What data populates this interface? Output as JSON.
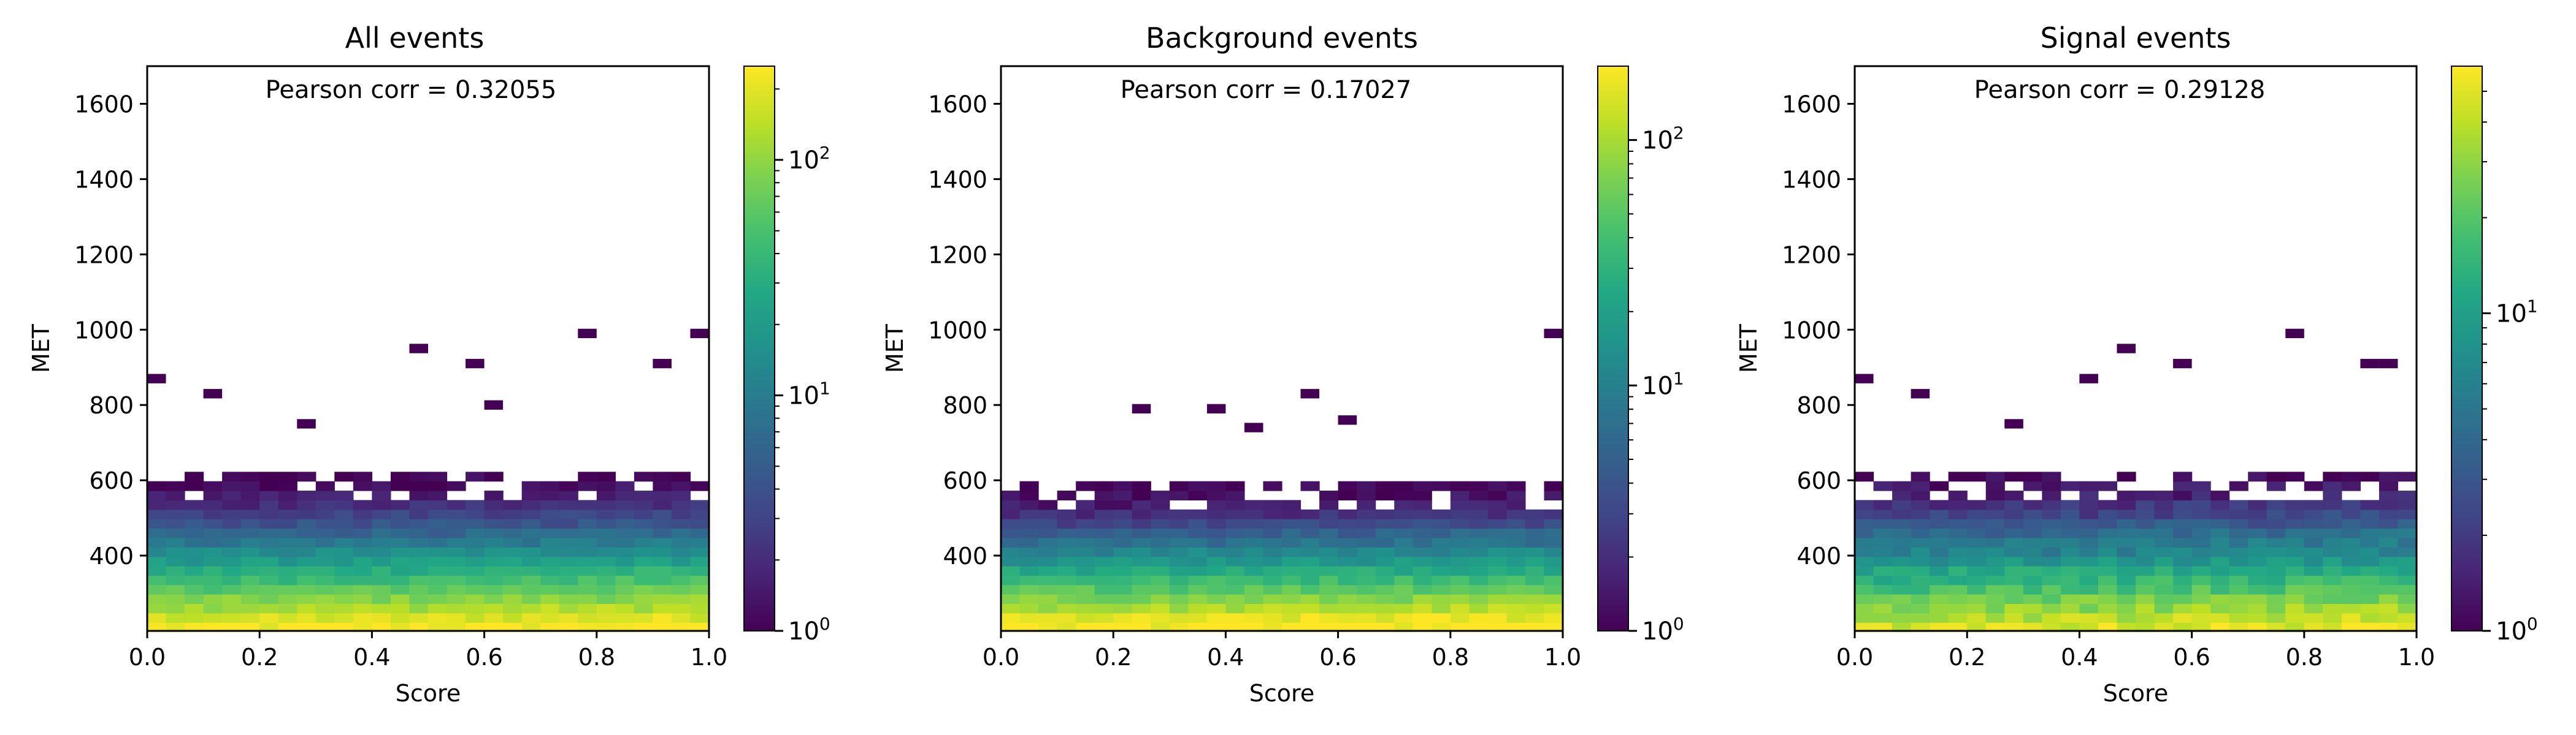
{
  "chart_data": [
    {
      "type": "heatmap",
      "title": "All events",
      "xlabel": "Score",
      "ylabel": "MET",
      "xlim": [
        0.0,
        1.0
      ],
      "ylim": [
        200,
        1700
      ],
      "xticks": [
        "0.0",
        "0.2",
        "0.4",
        "0.6",
        "0.8",
        "1.0"
      ],
      "yticks": [
        "400",
        "600",
        "800",
        "1000",
        "1200",
        "1400",
        "1600"
      ],
      "annotation": "Pearson corr = 0.32055",
      "colorbar": {
        "scale": "log",
        "min": 1,
        "max": 250,
        "ticks": [
          1,
          10,
          100
        ],
        "colormap": "viridis"
      },
      "bins": {
        "x_count": 30,
        "y_count": 30
      },
      "profile": {
        "met_rows": [
          210,
          235,
          260,
          285,
          310,
          335,
          360,
          385,
          410,
          435,
          460,
          485,
          510,
          535,
          560,
          585,
          610
        ],
        "typical_counts": [
          220,
          170,
          120,
          85,
          60,
          42,
          30,
          20,
          14,
          9,
          6,
          4,
          3,
          2,
          1.5,
          1.2,
          1
        ],
        "outliers": [
          [
            0.02,
            870
          ],
          [
            0.12,
            830
          ],
          [
            0.47,
            950
          ],
          [
            0.57,
            910
          ],
          [
            0.78,
            990
          ],
          [
            0.92,
            910
          ],
          [
            0.98,
            990
          ],
          [
            0.27,
            750
          ],
          [
            0.62,
            800
          ]
        ]
      }
    },
    {
      "type": "heatmap",
      "title": "Background events",
      "xlabel": "Score",
      "ylabel": "MET",
      "xlim": [
        0.0,
        1.0
      ],
      "ylim": [
        200,
        1700
      ],
      "xticks": [
        "0.0",
        "0.2",
        "0.4",
        "0.6",
        "0.8",
        "1.0"
      ],
      "yticks": [
        "400",
        "600",
        "800",
        "1000",
        "1200",
        "1400",
        "1600"
      ],
      "annotation": "Pearson corr = 0.17027",
      "colorbar": {
        "scale": "log",
        "min": 1,
        "max": 200,
        "ticks": [
          1,
          10,
          100
        ],
        "colormap": "viridis"
      },
      "bins": {
        "x_count": 30,
        "y_count": 30
      },
      "profile": {
        "met_rows": [
          210,
          235,
          260,
          285,
          310,
          335,
          360,
          385,
          410,
          435,
          460,
          485,
          510,
          535,
          560,
          585
        ],
        "typical_counts": [
          190,
          150,
          100,
          70,
          50,
          35,
          24,
          16,
          11,
          7,
          5,
          3,
          2,
          1.5,
          1.2,
          1
        ],
        "outliers": [
          [
            0.99,
            990
          ],
          [
            0.25,
            790
          ],
          [
            0.37,
            790
          ],
          [
            0.55,
            830
          ],
          [
            0.45,
            740
          ],
          [
            0.62,
            760
          ]
        ]
      }
    },
    {
      "type": "heatmap",
      "title": "Signal events",
      "xlabel": "Score",
      "ylabel": "MET",
      "xlim": [
        0.0,
        1.0
      ],
      "ylim": [
        200,
        1700
      ],
      "xticks": [
        "0.0",
        "0.2",
        "0.4",
        "0.6",
        "0.8",
        "1.0"
      ],
      "yticks": [
        "400",
        "600",
        "800",
        "1000",
        "1200",
        "1400",
        "1600"
      ],
      "annotation": "Pearson corr = 0.29128",
      "colorbar": {
        "scale": "log",
        "min": 1,
        "max": 60,
        "ticks": [
          1,
          10
        ],
        "colormap": "viridis"
      },
      "bins": {
        "x_count": 30,
        "y_count": 30
      },
      "profile": {
        "met_rows": [
          210,
          235,
          260,
          285,
          310,
          335,
          360,
          385,
          410,
          435,
          460,
          485,
          510,
          535,
          560,
          585,
          610
        ],
        "typical_counts": [
          45,
          38,
          30,
          24,
          18,
          14,
          11,
          8,
          6,
          5,
          4,
          3,
          2.2,
          1.8,
          1.4,
          1.2,
          1
        ],
        "outliers": [
          [
            0.02,
            870
          ],
          [
            0.12,
            830
          ],
          [
            0.47,
            950
          ],
          [
            0.57,
            910
          ],
          [
            0.78,
            990
          ],
          [
            0.92,
            910
          ],
          [
            0.96,
            910
          ],
          [
            0.27,
            750
          ],
          [
            0.42,
            870
          ]
        ]
      }
    }
  ]
}
